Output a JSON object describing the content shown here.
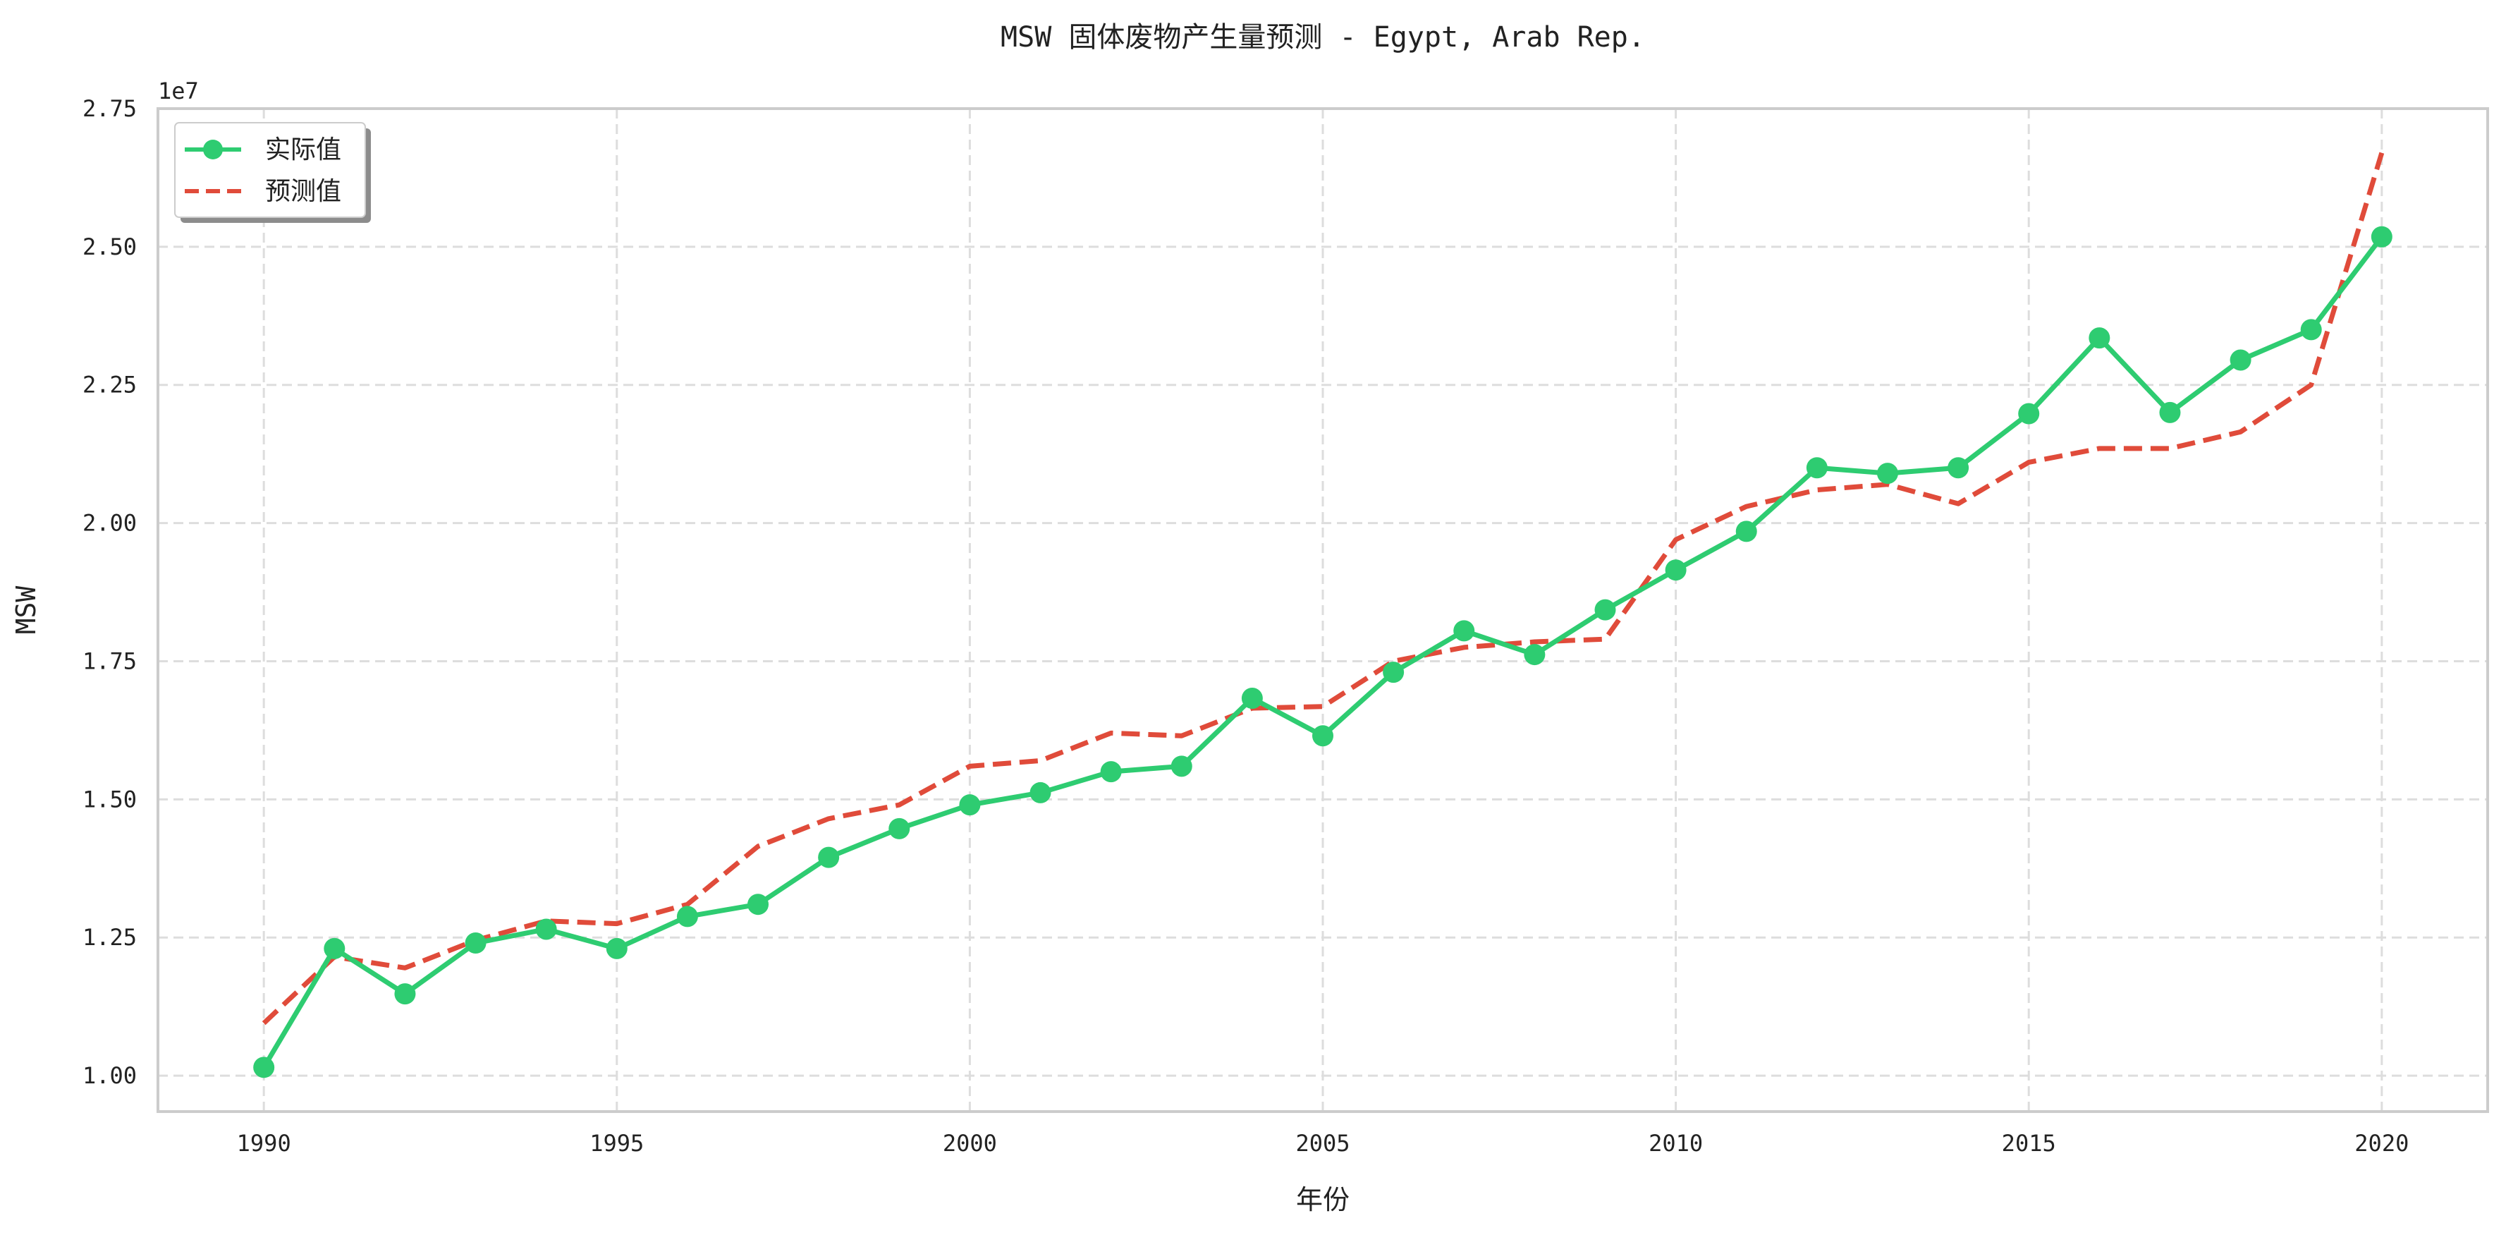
{
  "chart_data": {
    "type": "line",
    "title": "MSW 固体废物产生量预测 - Egypt, Arab Rep.",
    "xlabel": "年份",
    "ylabel": "MSW",
    "y_offset_label": "1e7",
    "y_scale_factor": 10000000,
    "xlim": [
      1988.5,
      2021.5
    ],
    "ylim": [
      0.935,
      2.75
    ],
    "x_ticks": [
      1990,
      1995,
      2000,
      2005,
      2010,
      2015,
      2020
    ],
    "y_ticks": [
      1.0,
      1.25,
      1.5,
      1.75,
      2.0,
      2.25,
      2.5,
      2.75
    ],
    "y_tick_labels": [
      "1.00",
      "1.25",
      "1.50",
      "1.75",
      "2.00",
      "2.25",
      "2.50",
      "2.75"
    ],
    "grid": true,
    "legend_position": "top-left",
    "x": [
      1990,
      1991,
      1992,
      1993,
      1994,
      1995,
      1996,
      1997,
      1998,
      1999,
      2000,
      2001,
      2002,
      2003,
      2004,
      2005,
      2006,
      2007,
      2008,
      2009,
      2010,
      2011,
      2012,
      2013,
      2014,
      2015,
      2016,
      2017,
      2018,
      2019,
      2020
    ],
    "series": [
      {
        "name": "实际值",
        "color": "#2ecc71",
        "style": "solid-marker",
        "values": [
          1.015,
          1.23,
          1.148,
          1.24,
          1.265,
          1.23,
          1.288,
          1.31,
          1.395,
          1.447,
          1.49,
          1.512,
          1.55,
          1.56,
          1.683,
          1.615,
          1.73,
          1.805,
          1.762,
          1.843,
          1.915,
          1.985,
          2.1,
          2.09,
          2.1,
          2.198,
          2.335,
          2.2,
          2.295,
          2.35,
          2.518
        ]
      },
      {
        "name": "预测值",
        "color": "#e04b3a",
        "style": "dashed",
        "values": [
          1.095,
          1.215,
          1.195,
          1.245,
          1.28,
          1.275,
          1.31,
          1.415,
          1.465,
          1.49,
          1.56,
          1.57,
          1.62,
          1.615,
          1.665,
          1.668,
          1.75,
          1.775,
          1.785,
          1.79,
          1.97,
          2.03,
          2.06,
          2.07,
          2.035,
          2.11,
          2.135,
          2.135,
          2.165,
          2.25,
          2.67
        ]
      }
    ]
  }
}
